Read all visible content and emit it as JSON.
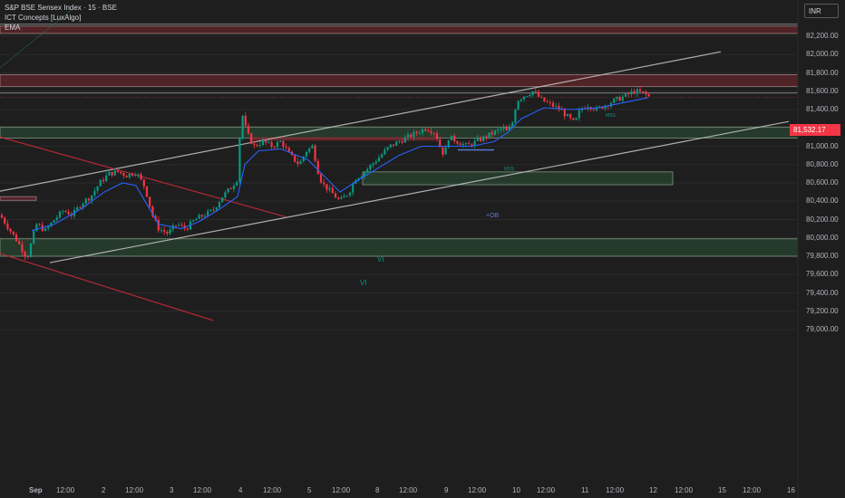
{
  "header": {
    "symbol_line": "S&P BSE Sensex Index · 15 · BSE",
    "indicator_1": "ICT Concepts [LuxAlgo]",
    "indicator_2": "EMA",
    "currency": "INR"
  },
  "colors": {
    "background": "#1e1e1e",
    "up_candle": "#089981",
    "down_candle": "#f23645",
    "ema": "#2962ff",
    "channel": "#c8c8c8",
    "down_channel": "#c2293a",
    "supply_zone": "#7a2830",
    "demand_zone": "#2e5e3c",
    "price_tag": "#f23645"
  },
  "chart_data": {
    "type": "candlestick",
    "title": "S&P BSE Sensex Index · 15 · BSE",
    "ylim": [
      78900,
      82500
    ],
    "y_ticks": [
      79000,
      79200,
      79400,
      79600,
      79800,
      80000,
      80200,
      80400,
      80600,
      80800,
      81000,
      81200,
      81400,
      81600,
      81800,
      82000,
      82200
    ],
    "y_tick_labels": [
      "79,000.00",
      "79,200.00",
      "79,400.00",
      "79,600.00",
      "79,800.00",
      "80,000.00",
      "80,200.00",
      "80,400.00",
      "80,600.00",
      "80,800.00",
      "81,000.00",
      "81,200.00",
      "81,400.00",
      "81,600.00",
      "81,800.00",
      "82,000.00",
      "82,200.00"
    ],
    "x_tick_labels": [
      "Sep",
      "12:00",
      "2",
      "12:00",
      "3",
      "12:00",
      "4",
      "12:00",
      "5",
      "12:00",
      "8",
      "12:00",
      "9",
      "12:00",
      "10",
      "12:00",
      "11",
      "12:00",
      "12",
      "12:00",
      "15",
      "12:00",
      "16"
    ],
    "last_price": 81532.17,
    "last_price_label": "81,532.17",
    "close_path": [
      [
        0,
        80250
      ],
      [
        10,
        80100
      ],
      [
        20,
        79950
      ],
      [
        30,
        79780
      ],
      [
        40,
        80150
      ],
      [
        50,
        80080
      ],
      [
        60,
        80200
      ],
      [
        70,
        80300
      ],
      [
        80,
        80250
      ],
      [
        90,
        80380
      ],
      [
        100,
        80450
      ],
      [
        110,
        80600
      ],
      [
        120,
        80700
      ],
      [
        130,
        80720
      ],
      [
        140,
        80680
      ],
      [
        150,
        80720
      ],
      [
        160,
        80550
      ],
      [
        168,
        80250
      ],
      [
        175,
        80100
      ],
      [
        185,
        80050
      ],
      [
        195,
        80150
      ],
      [
        205,
        80100
      ],
      [
        215,
        80200
      ],
      [
        225,
        80250
      ],
      [
        235,
        80300
      ],
      [
        245,
        80450
      ],
      [
        255,
        80550
      ],
      [
        262,
        80650
      ],
      [
        266,
        81400
      ],
      [
        272,
        81150
      ],
      [
        280,
        81000
      ],
      [
        290,
        81050
      ],
      [
        300,
        81000
      ],
      [
        310,
        81050
      ],
      [
        320,
        80900
      ],
      [
        330,
        80800
      ],
      [
        338,
        80950
      ],
      [
        345,
        81000
      ],
      [
        350,
        80750
      ],
      [
        355,
        80600
      ],
      [
        365,
        80500
      ],
      [
        375,
        80400
      ],
      [
        385,
        80500
      ],
      [
        392,
        80650
      ],
      [
        400,
        80700
      ],
      [
        410,
        80800
      ],
      [
        420,
        80900
      ],
      [
        430,
        81000
      ],
      [
        440,
        81050
      ],
      [
        450,
        81100
      ],
      [
        460,
        81150
      ],
      [
        470,
        81200
      ],
      [
        480,
        81150
      ],
      [
        485,
        81000
      ],
      [
        490,
        80900
      ],
      [
        495,
        81100
      ],
      [
        505,
        81050
      ],
      [
        515,
        81000
      ],
      [
        525,
        81050
      ],
      [
        535,
        81100
      ],
      [
        545,
        81150
      ],
      [
        555,
        81200
      ],
      [
        560,
        81150
      ],
      [
        565,
        81250
      ],
      [
        570,
        81500
      ],
      [
        578,
        81550
      ],
      [
        588,
        81600
      ],
      [
        598,
        81500
      ],
      [
        608,
        81450
      ],
      [
        618,
        81400
      ],
      [
        628,
        81300
      ],
      [
        634,
        81250
      ],
      [
        640,
        81400
      ],
      [
        648,
        81450
      ],
      [
        658,
        81400
      ],
      [
        668,
        81450
      ],
      [
        678,
        81500
      ],
      [
        690,
        81550
      ],
      [
        700,
        81600
      ],
      [
        710,
        81580
      ],
      [
        717,
        81530
      ]
    ],
    "ema_series": [
      [
        35,
        80080
      ],
      [
        60,
        80150
      ],
      [
        90,
        80320
      ],
      [
        115,
        80500
      ],
      [
        135,
        80600
      ],
      [
        150,
        80570
      ],
      [
        160,
        80400
      ],
      [
        175,
        80150
      ],
      [
        200,
        80100
      ],
      [
        220,
        80180
      ],
      [
        240,
        80300
      ],
      [
        262,
        80450
      ],
      [
        270,
        80800
      ],
      [
        285,
        80950
      ],
      [
        310,
        80970
      ],
      [
        340,
        80850
      ],
      [
        355,
        80700
      ],
      [
        375,
        80500
      ],
      [
        395,
        80630
      ],
      [
        415,
        80750
      ],
      [
        440,
        80900
      ],
      [
        465,
        81000
      ],
      [
        490,
        81000
      ],
      [
        520,
        81000
      ],
      [
        545,
        81050
      ],
      [
        560,
        81150
      ],
      [
        575,
        81300
      ],
      [
        600,
        81420
      ],
      [
        630,
        81400
      ],
      [
        660,
        81420
      ],
      [
        690,
        81480
      ],
      [
        715,
        81530
      ]
    ],
    "zones": [
      {
        "type": "supply",
        "y1": 82230,
        "y2": 82310
      },
      {
        "type": "supply",
        "y1": 81650,
        "y2": 81780
      },
      {
        "type": "supply",
        "y1": 80410,
        "y2": 80450
      },
      {
        "type": "demand",
        "y1": 81090,
        "y2": 81210
      },
      {
        "type": "demand",
        "y1": 79800,
        "y2": 79990
      },
      {
        "type": "demand",
        "y1": 80580,
        "y2": 80720
      }
    ],
    "trendlines": [
      {
        "name": "channel-upper",
        "points": [
          [
            0,
            80510
          ],
          [
            795,
            82030
          ]
        ]
      },
      {
        "name": "channel-lower",
        "points": [
          [
            55,
            79730
          ],
          [
            870,
            81270
          ]
        ]
      },
      {
        "name": "down-channel-upper",
        "points": [
          [
            0,
            81100
          ],
          [
            315,
            80230
          ]
        ]
      },
      {
        "name": "down-channel-lower",
        "points": [
          [
            0,
            79830
          ],
          [
            235,
            79100
          ]
        ]
      }
    ],
    "annotations": [
      "VI",
      "VI",
      "+OB",
      "MSS",
      "MSS"
    ]
  }
}
